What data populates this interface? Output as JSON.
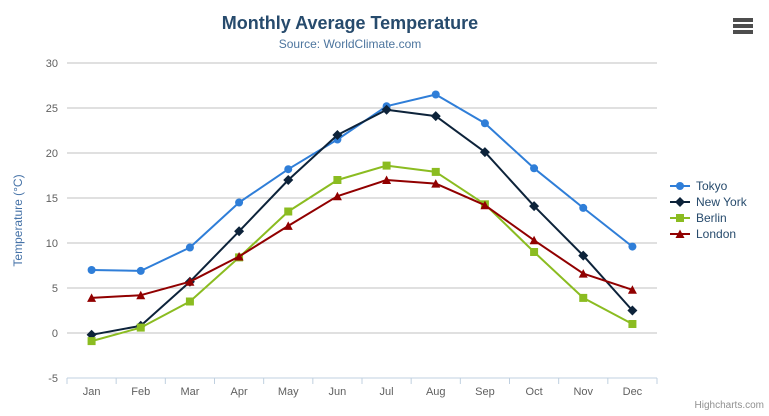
{
  "credits": "Highcharts.com",
  "context_menu": {
    "icon": "hamburger-icon"
  },
  "palette": {
    "title_color": "#274b6d",
    "subtitle_color": "#4d759e",
    "axis_label_color": "#606060",
    "y_axis_title_color": "#4572a7",
    "gridline_color": "#c0c0c0",
    "axis_line_color": "#c0d0e0",
    "legend_text_color": "#274b6d",
    "credits_color": "#909090"
  },
  "chart_data": {
    "type": "line",
    "title": "Monthly Average Temperature",
    "subtitle": "Source: WorldClimate.com",
    "categories": [
      "Jan",
      "Feb",
      "Mar",
      "Apr",
      "May",
      "Jun",
      "Jul",
      "Aug",
      "Sep",
      "Oct",
      "Nov",
      "Dec"
    ],
    "xlabel": "",
    "ylabel": "Temperature (°C)",
    "ylim": [
      -5,
      30
    ],
    "y_ticks": [
      -5,
      0,
      5,
      10,
      15,
      20,
      25,
      30
    ],
    "grid": true,
    "legend_position": "right",
    "series": [
      {
        "name": "Tokyo",
        "color": "#2f7ed8",
        "marker": "circle",
        "values": [
          7.0,
          6.9,
          9.5,
          14.5,
          18.2,
          21.5,
          25.2,
          26.5,
          23.3,
          18.3,
          13.9,
          9.6
        ]
      },
      {
        "name": "New York",
        "color": "#0d233a",
        "marker": "diamond",
        "values": [
          -0.2,
          0.8,
          5.7,
          11.3,
          17.0,
          22.0,
          24.8,
          24.1,
          20.1,
          14.1,
          8.6,
          2.5
        ]
      },
      {
        "name": "Berlin",
        "color": "#8bbc21",
        "marker": "square",
        "values": [
          -0.9,
          0.6,
          3.5,
          8.4,
          13.5,
          17.0,
          18.6,
          17.9,
          14.3,
          9.0,
          3.9,
          1.0
        ]
      },
      {
        "name": "London",
        "color": "#910000",
        "marker": "triangle",
        "values": [
          3.9,
          4.2,
          5.7,
          8.5,
          11.9,
          15.2,
          17.0,
          16.6,
          14.2,
          10.3,
          6.6,
          4.8
        ]
      }
    ]
  }
}
